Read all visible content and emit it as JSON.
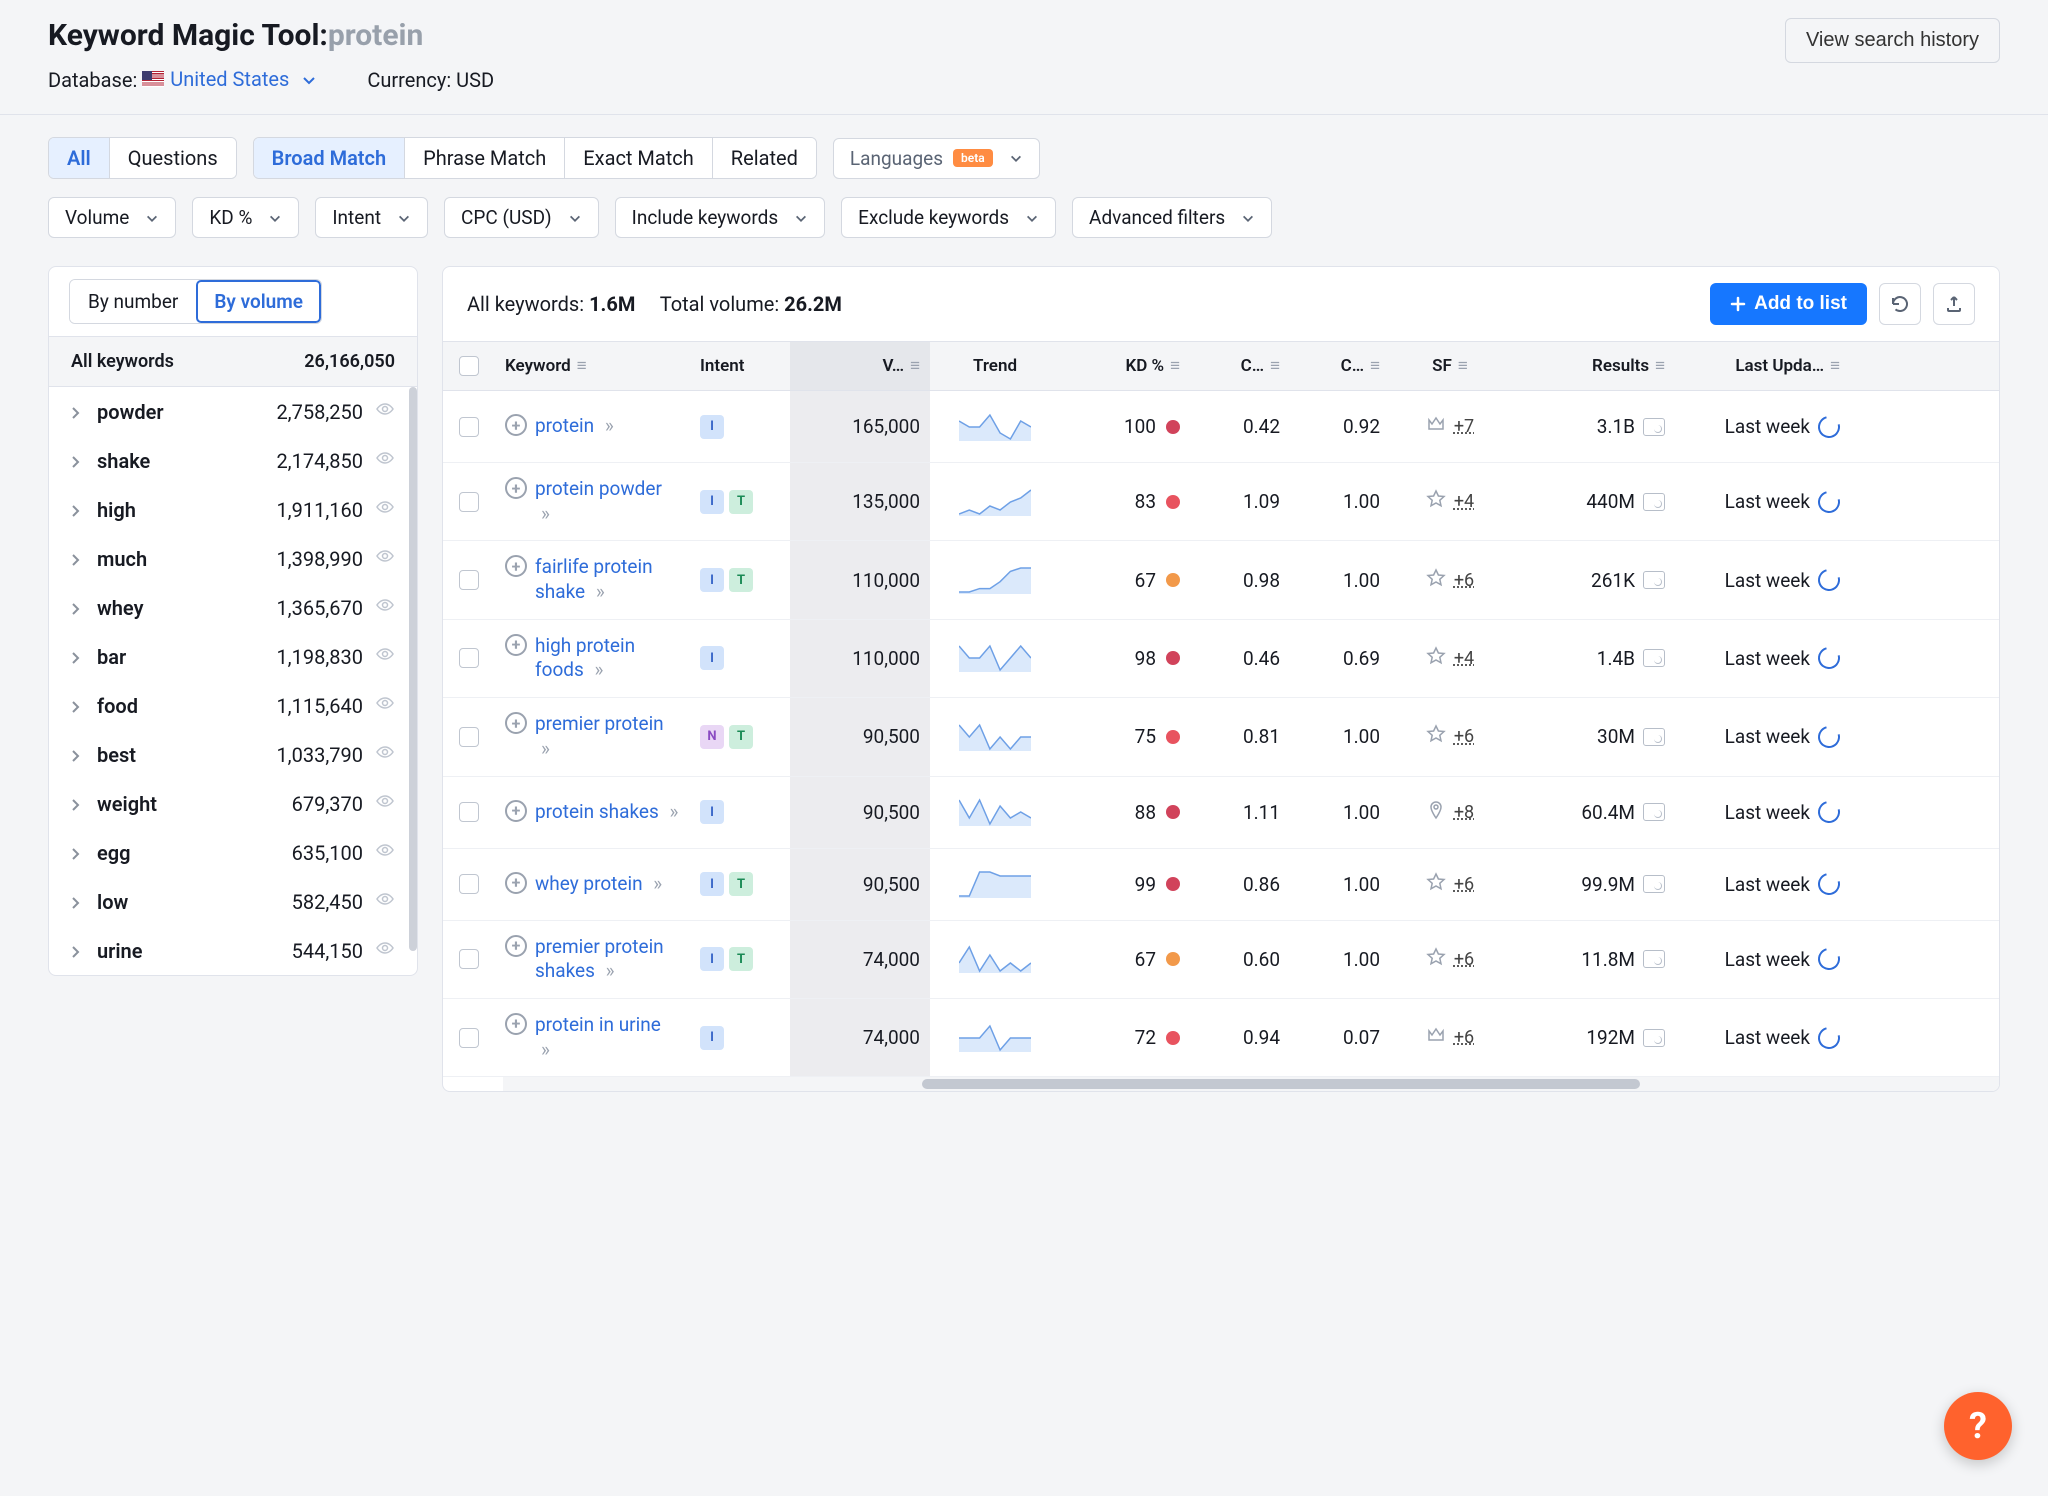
{
  "colors": {
    "accent": "#1677ff",
    "link": "#2e6cd9",
    "fab": "#ff622d",
    "kd_red": "#d1435b",
    "kd_orange": "#f2994a",
    "spark_fill": "#dbe9fb",
    "spark_stroke": "#6ea0e6"
  },
  "header": {
    "tool_name": "Keyword Magic Tool: ",
    "query": "protein",
    "database_label": "Database:",
    "database_value": "United States",
    "currency_label": "Currency: USD",
    "history_btn": "View search history"
  },
  "filters": {
    "tabs1": [
      "All",
      "Questions"
    ],
    "tabs1_active": 0,
    "tabs2": [
      "Broad Match",
      "Phrase Match",
      "Exact Match",
      "Related"
    ],
    "tabs2_active": 0,
    "languages_label": "Languages",
    "languages_beta": "beta",
    "row2": [
      "Volume",
      "KD %",
      "Intent",
      "CPC (USD)",
      "Include keywords",
      "Exclude keywords",
      "Advanced filters"
    ]
  },
  "sidebar": {
    "toggle": [
      "By number",
      "By volume"
    ],
    "toggle_active": 1,
    "all_label": "All keywords",
    "all_count": "26,166,050",
    "items": [
      {
        "term": "powder",
        "count": "2,758,250"
      },
      {
        "term": "shake",
        "count": "2,174,850"
      },
      {
        "term": "high",
        "count": "1,911,160"
      },
      {
        "term": "much",
        "count": "1,398,990"
      },
      {
        "term": "whey",
        "count": "1,365,670"
      },
      {
        "term": "bar",
        "count": "1,198,830"
      },
      {
        "term": "food",
        "count": "1,115,640"
      },
      {
        "term": "best",
        "count": "1,033,790"
      },
      {
        "term": "weight",
        "count": "679,370"
      },
      {
        "term": "egg",
        "count": "635,100"
      },
      {
        "term": "low",
        "count": "582,450"
      },
      {
        "term": "urine",
        "count": "544,150"
      }
    ]
  },
  "main": {
    "summary_kw_label": "All keywords: ",
    "summary_kw_value": "1.6M",
    "summary_vol_label": "Total volume: ",
    "summary_vol_value": "26.2M",
    "add_btn": "Add to list",
    "columns": [
      "Keyword",
      "Intent",
      "V…",
      "Trend",
      "KD %",
      "C…",
      "C…",
      "SF",
      "Results",
      "Last Upda…"
    ],
    "rows": [
      {
        "kw": "protein",
        "intents": [
          "I"
        ],
        "volume": "165,000",
        "kd": 100,
        "kd_color": "#d1435b",
        "cpc": "0.42",
        "com": "0.92",
        "sf_icon": "crown",
        "sf": "+7",
        "results": "3.1B",
        "updated": "Last week",
        "spark": [
          6,
          5,
          5,
          7,
          4,
          3,
          6,
          5
        ]
      },
      {
        "kw": "protein powder",
        "intents": [
          "I",
          "T"
        ],
        "volume": "135,000",
        "kd": 83,
        "kd_color": "#e8535f",
        "cpc": "1.09",
        "com": "1.00",
        "sf_icon": "star",
        "sf": "+4",
        "results": "440M",
        "updated": "Last week",
        "spark": [
          2,
          3,
          2,
          4,
          3,
          5,
          6,
          8
        ]
      },
      {
        "kw": "fairlife protein shake",
        "intents": [
          "I",
          "T"
        ],
        "volume": "110,000",
        "kd": 67,
        "kd_color": "#f2994a",
        "cpc": "0.98",
        "com": "1.00",
        "sf_icon": "star",
        "sf": "+6",
        "results": "261K",
        "updated": "Last week",
        "spark": [
          1,
          1,
          2,
          2,
          4,
          7,
          8,
          8
        ]
      },
      {
        "kw": "high protein foods",
        "intents": [
          "I"
        ],
        "volume": "110,000",
        "kd": 98,
        "kd_color": "#d1435b",
        "cpc": "0.46",
        "com": "0.69",
        "sf_icon": "star",
        "sf": "+4",
        "results": "1.4B",
        "updated": "Last week",
        "spark": [
          5,
          4,
          4,
          5,
          3,
          4,
          5,
          4
        ]
      },
      {
        "kw": "premier protein",
        "intents": [
          "N",
          "T"
        ],
        "volume": "90,500",
        "kd": 75,
        "kd_color": "#e8535f",
        "cpc": "0.81",
        "com": "1.00",
        "sf_icon": "star",
        "sf": "+6",
        "results": "30M",
        "updated": "Last week",
        "spark": [
          6,
          5,
          6,
          4,
          5,
          4,
          5,
          5
        ]
      },
      {
        "kw": "protein shakes",
        "intents": [
          "I"
        ],
        "volume": "90,500",
        "kd": 88,
        "kd_color": "#d1435b",
        "cpc": "1.11",
        "com": "1.00",
        "sf_icon": "pin",
        "sf": "+8",
        "results": "60.4M",
        "updated": "Last week",
        "spark": [
          7,
          4,
          7,
          3,
          6,
          4,
          5,
          4
        ]
      },
      {
        "kw": "whey protein",
        "intents": [
          "I",
          "T"
        ],
        "volume": "90,500",
        "kd": 99,
        "kd_color": "#d1435b",
        "cpc": "0.86",
        "com": "1.00",
        "sf_icon": "star",
        "sf": "+6",
        "results": "99.9M",
        "updated": "Last week",
        "spark": [
          2,
          2,
          8,
          8,
          7,
          7,
          7,
          7
        ]
      },
      {
        "kw": "premier protein shakes",
        "intents": [
          "I",
          "T"
        ],
        "volume": "74,000",
        "kd": 67,
        "kd_color": "#f2994a",
        "cpc": "0.60",
        "com": "1.00",
        "sf_icon": "star",
        "sf": "+6",
        "results": "11.8M",
        "updated": "Last week",
        "spark": [
          5,
          7,
          4,
          6,
          4,
          5,
          4,
          5
        ]
      },
      {
        "kw": "protein in urine",
        "intents": [
          "I"
        ],
        "volume": "74,000",
        "kd": 72,
        "kd_color": "#e8535f",
        "cpc": "0.94",
        "com": "0.07",
        "sf_icon": "crown",
        "sf": "+6",
        "results": "192M",
        "updated": "Last week",
        "spark": [
          4,
          4,
          4,
          5,
          3,
          4,
          4,
          4
        ]
      }
    ]
  },
  "fab": "?"
}
